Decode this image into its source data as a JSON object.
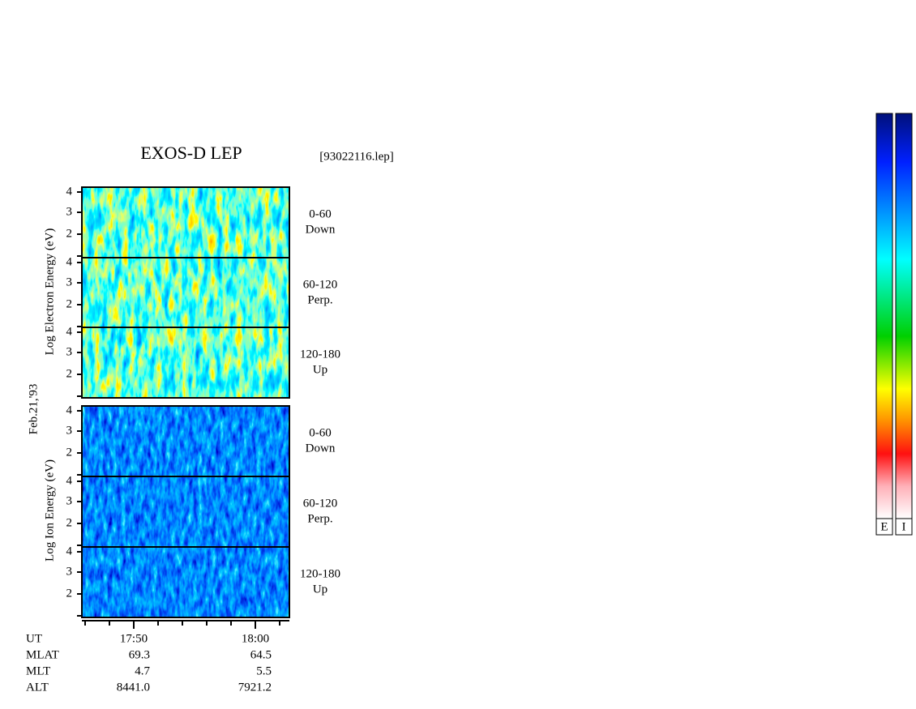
{
  "title": "EXOS-D LEP",
  "file": "[93022116.lep]",
  "date": "Feb.21,'93",
  "yticks": [
    "4",
    "3",
    "2"
  ],
  "groups": [
    {
      "ylabel": "Log  Electron  Energy (eV)",
      "panels": [
        {
          "range": "0-60",
          "dir": "Down"
        },
        {
          "range": "60-120",
          "dir": "Perp."
        },
        {
          "range": "120-180",
          "dir": "Up"
        }
      ]
    },
    {
      "ylabel": "Log  Ion  Energy (eV)",
      "panels": [
        {
          "range": "0-60",
          "dir": "Down"
        },
        {
          "range": "60-120",
          "dir": "Perp."
        },
        {
          "range": "120-180",
          "dir": "Up"
        }
      ]
    }
  ],
  "time_labels": [
    "17:50",
    "18:00"
  ],
  "rows": [
    {
      "label": "MLAT",
      "values": [
        "69.3",
        "64.5"
      ]
    },
    {
      "label": "MLT",
      "values": [
        "4.7",
        "5.5"
      ]
    },
    {
      "label": "ALT",
      "values": [
        "8441.0",
        "7921.2"
      ]
    }
  ],
  "time_row_label": "UT",
  "colorbars": [
    "E",
    "I"
  ]
}
